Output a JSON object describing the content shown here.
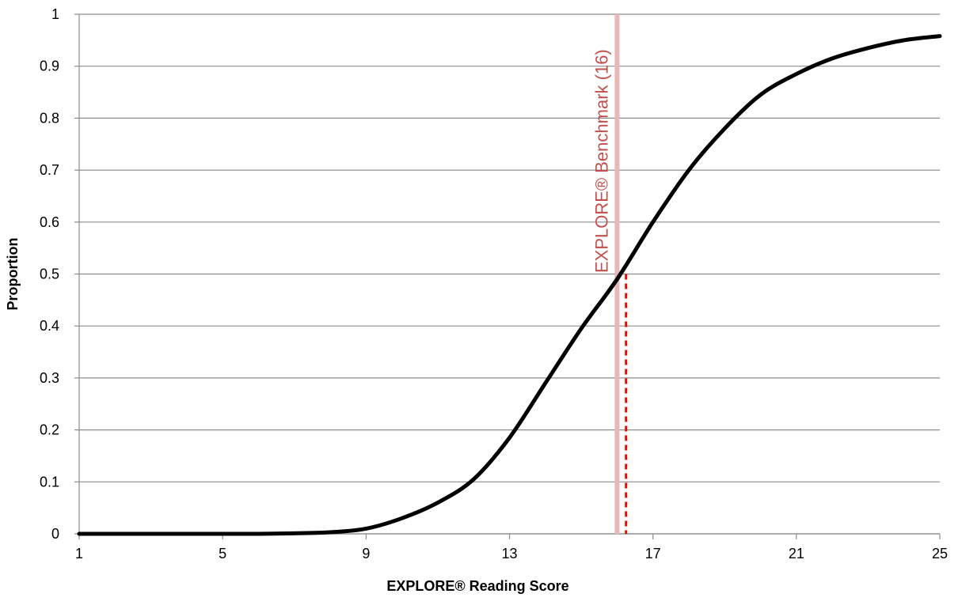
{
  "chart_data": {
    "type": "line",
    "title": "",
    "xlabel": "EXPLORE® Reading Score",
    "ylabel": "Proportion",
    "xlim": [
      1,
      25
    ],
    "ylim": [
      0,
      1
    ],
    "x_ticks": [
      "1",
      "5",
      "9",
      "13",
      "17",
      "21",
      "25"
    ],
    "y_ticks": [
      "0",
      "0.1",
      "0.2",
      "0.3",
      "0.4",
      "0.5",
      "0.6",
      "0.7",
      "0.8",
      "0.9",
      "1"
    ],
    "grid": "horizontal",
    "legend": "none",
    "series": [
      {
        "color": "#000000",
        "x": [
          1,
          2,
          3,
          4,
          5,
          6,
          7,
          8,
          9,
          10,
          11,
          12,
          13,
          14,
          15,
          16,
          17,
          18,
          19,
          20,
          21,
          22,
          23,
          24,
          25
        ],
        "y": [
          0.0,
          0.0,
          0.0,
          0.0,
          0.0,
          0.0,
          0.001,
          0.003,
          0.01,
          0.03,
          0.06,
          0.105,
          0.185,
          0.29,
          0.395,
          0.49,
          0.6,
          0.7,
          0.78,
          0.845,
          0.885,
          0.915,
          0.935,
          0.95,
          0.958
        ]
      }
    ],
    "benchmark": {
      "x": 16,
      "label": "EXPLORE® Benchmark (16)",
      "color": "#e8b7b7",
      "label_color": "#c0504d"
    },
    "crossing": {
      "x": 16.25,
      "y": 0.5,
      "color": "#ff0000"
    }
  }
}
